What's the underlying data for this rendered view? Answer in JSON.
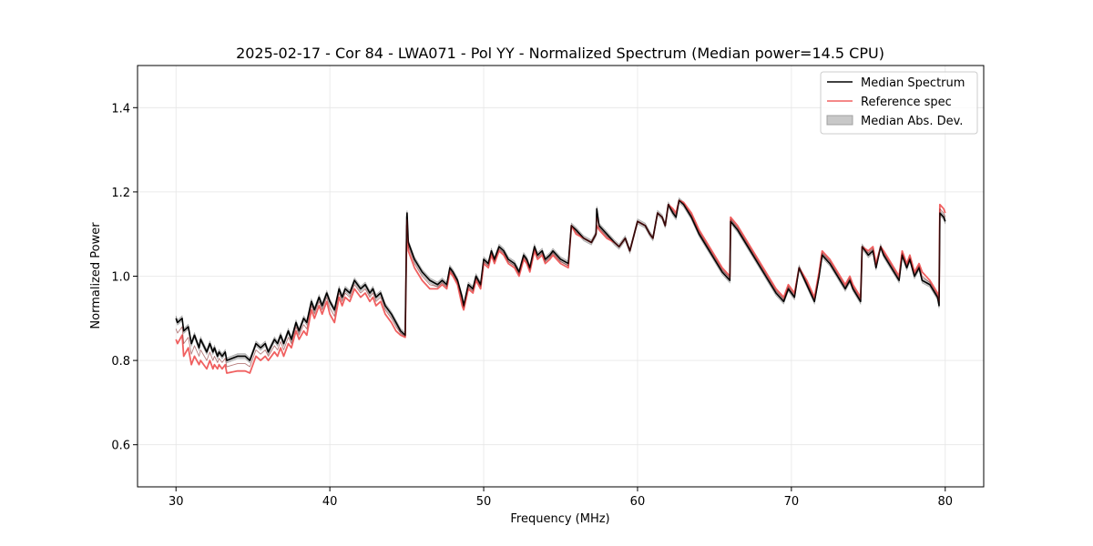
{
  "chart_data": {
    "type": "line",
    "title": "2025-02-17 - Cor 84 - LWA071 - Pol YY - Normalized Spectrum (Median power=14.5 CPU)",
    "xlabel": "Frequency (MHz)",
    "ylabel": "Normalized Power",
    "xlim": [
      27.5,
      82.5
    ],
    "ylim": [
      0.5,
      1.5
    ],
    "xticks": [
      30,
      40,
      50,
      60,
      70,
      80
    ],
    "yticks": [
      0.6,
      0.8,
      1.0,
      1.2,
      1.4
    ],
    "xtick_labels": [
      "30",
      "40",
      "50",
      "60",
      "70",
      "80"
    ],
    "ytick_labels": [
      "0.6",
      "0.8",
      "1.0",
      "1.2",
      "1.4"
    ],
    "grid": true,
    "legend_position": "top-right",
    "colors": {
      "median": "#000000",
      "reference": "#f06060",
      "mad_fill": "#c8c8c8",
      "mad_edge": "#a0a0a0"
    },
    "series": [
      {
        "name": "Median Spectrum",
        "x": [
          30.0,
          30.1,
          30.4,
          30.5,
          30.8,
          31.0,
          31.2,
          31.5,
          31.6,
          32.0,
          32.2,
          32.4,
          32.5,
          32.7,
          32.8,
          33.0,
          33.2,
          33.3,
          34.0,
          34.5,
          34.8,
          35.0,
          35.2,
          35.5,
          35.8,
          36.0,
          36.4,
          36.6,
          36.8,
          37.0,
          37.3,
          37.5,
          37.8,
          38.0,
          38.3,
          38.5,
          38.8,
          39.0,
          39.3,
          39.5,
          39.8,
          40.0,
          40.3,
          40.6,
          40.8,
          41.0,
          41.3,
          41.6,
          42.0,
          42.3,
          42.6,
          42.8,
          43.0,
          43.3,
          43.6,
          44.0,
          44.3,
          44.6,
          44.9,
          45.0,
          45.02,
          45.1,
          45.5,
          46.0,
          46.5,
          47.0,
          47.3,
          47.6,
          47.8,
          48.0,
          48.3,
          48.6,
          48.7,
          49.0,
          49.3,
          49.5,
          49.8,
          50.0,
          50.3,
          50.5,
          50.7,
          51.0,
          51.3,
          51.6,
          52.0,
          52.3,
          52.6,
          52.8,
          53.0,
          53.3,
          53.5,
          53.8,
          54.0,
          54.3,
          54.5,
          55.0,
          55.5,
          55.7,
          56.0,
          56.5,
          57.0,
          57.3,
          57.35,
          57.5,
          58.0,
          58.5,
          58.8,
          59.2,
          59.5,
          60.0,
          60.5,
          60.8,
          61.0,
          61.3,
          61.6,
          61.8,
          62.0,
          62.3,
          62.5,
          62.7,
          63.0,
          63.5,
          64.0,
          64.5,
          65.0,
          65.5,
          66.0,
          66.05,
          66.5,
          67.0,
          67.5,
          68.0,
          68.5,
          69.0,
          69.5,
          69.8,
          70.0,
          70.2,
          70.5,
          71.0,
          71.5,
          71.8,
          72.0,
          72.5,
          73.0,
          73.5,
          73.8,
          74.0,
          74.5,
          74.6,
          75.0,
          75.3,
          75.5,
          75.8,
          76.0,
          76.5,
          77.0,
          77.2,
          77.5,
          77.7,
          78.0,
          78.3,
          78.5,
          79.0,
          79.5,
          79.6,
          79.65,
          79.9,
          80.0
        ],
        "values": [
          0.9,
          0.89,
          0.9,
          0.87,
          0.88,
          0.84,
          0.86,
          0.83,
          0.85,
          0.82,
          0.84,
          0.82,
          0.83,
          0.81,
          0.82,
          0.81,
          0.82,
          0.8,
          0.81,
          0.81,
          0.8,
          0.82,
          0.84,
          0.83,
          0.84,
          0.82,
          0.85,
          0.84,
          0.86,
          0.84,
          0.87,
          0.85,
          0.89,
          0.87,
          0.9,
          0.89,
          0.94,
          0.92,
          0.95,
          0.93,
          0.96,
          0.94,
          0.92,
          0.97,
          0.95,
          0.97,
          0.96,
          0.99,
          0.97,
          0.98,
          0.96,
          0.97,
          0.95,
          0.96,
          0.93,
          0.91,
          0.89,
          0.87,
          0.86,
          1.14,
          1.15,
          1.08,
          1.04,
          1.01,
          0.99,
          0.98,
          0.99,
          0.98,
          1.02,
          1.01,
          0.99,
          0.95,
          0.93,
          0.98,
          0.97,
          1.0,
          0.98,
          1.04,
          1.03,
          1.06,
          1.04,
          1.07,
          1.06,
          1.04,
          1.03,
          1.01,
          1.05,
          1.04,
          1.02,
          1.07,
          1.05,
          1.06,
          1.04,
          1.05,
          1.06,
          1.04,
          1.03,
          1.12,
          1.11,
          1.09,
          1.08,
          1.1,
          1.16,
          1.12,
          1.1,
          1.08,
          1.07,
          1.09,
          1.06,
          1.13,
          1.12,
          1.1,
          1.09,
          1.15,
          1.14,
          1.12,
          1.17,
          1.15,
          1.14,
          1.18,
          1.17,
          1.14,
          1.1,
          1.07,
          1.04,
          1.01,
          0.99,
          1.13,
          1.11,
          1.08,
          1.05,
          1.02,
          0.99,
          0.96,
          0.94,
          0.97,
          0.96,
          0.95,
          1.02,
          0.98,
          0.94,
          1.0,
          1.05,
          1.03,
          1.0,
          0.97,
          0.99,
          0.97,
          0.94,
          1.07,
          1.05,
          1.06,
          1.02,
          1.07,
          1.05,
          1.02,
          0.99,
          1.05,
          1.02,
          1.04,
          1.0,
          1.02,
          0.99,
          0.98,
          0.95,
          0.93,
          1.15,
          1.14,
          1.13
        ]
      },
      {
        "name": "Reference spec",
        "x": [
          30.0,
          30.1,
          30.4,
          30.5,
          30.8,
          31.0,
          31.2,
          31.5,
          31.6,
          32.0,
          32.2,
          32.4,
          32.5,
          32.7,
          32.8,
          33.0,
          33.2,
          33.3,
          34.0,
          34.5,
          34.8,
          35.0,
          35.2,
          35.5,
          35.8,
          36.0,
          36.4,
          36.6,
          36.8,
          37.0,
          37.3,
          37.5,
          37.8,
          38.0,
          38.3,
          38.5,
          38.8,
          39.0,
          39.3,
          39.5,
          39.8,
          40.0,
          40.3,
          40.6,
          40.8,
          41.0,
          41.3,
          41.6,
          42.0,
          42.3,
          42.6,
          42.8,
          43.0,
          43.3,
          43.6,
          44.0,
          44.3,
          44.6,
          44.9,
          45.0,
          45.02,
          45.1,
          45.5,
          46.0,
          46.5,
          47.0,
          47.3,
          47.6,
          47.8,
          48.0,
          48.3,
          48.6,
          48.7,
          49.0,
          49.3,
          49.5,
          49.8,
          50.0,
          50.3,
          50.5,
          50.7,
          51.0,
          51.3,
          51.6,
          52.0,
          52.3,
          52.6,
          52.8,
          53.0,
          53.3,
          53.5,
          53.8,
          54.0,
          54.3,
          54.5,
          55.0,
          55.5,
          55.7,
          56.0,
          56.5,
          57.0,
          57.3,
          57.35,
          57.5,
          58.0,
          58.5,
          58.8,
          59.2,
          59.5,
          60.0,
          60.5,
          60.8,
          61.0,
          61.3,
          61.6,
          61.8,
          62.0,
          62.3,
          62.5,
          62.7,
          63.0,
          63.5,
          64.0,
          64.5,
          65.0,
          65.5,
          66.0,
          66.05,
          66.5,
          67.0,
          67.5,
          68.0,
          68.5,
          69.0,
          69.5,
          69.8,
          70.0,
          70.2,
          70.5,
          71.0,
          71.5,
          71.8,
          72.0,
          72.5,
          73.0,
          73.5,
          73.8,
          74.0,
          74.5,
          74.6,
          75.0,
          75.3,
          75.5,
          75.8,
          76.0,
          76.5,
          77.0,
          77.2,
          77.5,
          77.7,
          78.0,
          78.3,
          78.5,
          79.0,
          79.5,
          79.6,
          79.65,
          79.9,
          80.0
        ],
        "values": [
          0.85,
          0.84,
          0.86,
          0.81,
          0.83,
          0.79,
          0.81,
          0.79,
          0.8,
          0.78,
          0.8,
          0.78,
          0.79,
          0.78,
          0.79,
          0.78,
          0.79,
          0.77,
          0.775,
          0.775,
          0.77,
          0.79,
          0.81,
          0.8,
          0.81,
          0.8,
          0.82,
          0.81,
          0.83,
          0.81,
          0.84,
          0.83,
          0.87,
          0.85,
          0.87,
          0.86,
          0.92,
          0.9,
          0.93,
          0.91,
          0.94,
          0.91,
          0.89,
          0.95,
          0.93,
          0.95,
          0.94,
          0.97,
          0.95,
          0.96,
          0.94,
          0.95,
          0.93,
          0.94,
          0.91,
          0.89,
          0.87,
          0.86,
          0.855,
          1.12,
          1.12,
          1.06,
          1.02,
          0.99,
          0.97,
          0.97,
          0.98,
          0.97,
          1.01,
          1.0,
          0.98,
          0.93,
          0.92,
          0.97,
          0.96,
          0.99,
          0.97,
          1.03,
          1.02,
          1.05,
          1.03,
          1.06,
          1.05,
          1.03,
          1.02,
          1.0,
          1.04,
          1.03,
          1.01,
          1.06,
          1.04,
          1.05,
          1.03,
          1.04,
          1.05,
          1.03,
          1.02,
          1.12,
          1.1,
          1.09,
          1.08,
          1.1,
          1.12,
          1.11,
          1.09,
          1.08,
          1.07,
          1.09,
          1.06,
          1.13,
          1.12,
          1.1,
          1.09,
          1.15,
          1.14,
          1.12,
          1.17,
          1.16,
          1.15,
          1.18,
          1.175,
          1.15,
          1.11,
          1.08,
          1.05,
          1.02,
          1.0,
          1.14,
          1.12,
          1.09,
          1.06,
          1.03,
          1.0,
          0.97,
          0.95,
          0.98,
          0.97,
          0.96,
          1.02,
          0.99,
          0.95,
          1.01,
          1.06,
          1.04,
          1.01,
          0.98,
          1.0,
          0.98,
          0.95,
          1.07,
          1.06,
          1.07,
          1.03,
          1.07,
          1.06,
          1.03,
          1.0,
          1.06,
          1.03,
          1.05,
          1.01,
          1.03,
          1.01,
          0.99,
          0.96,
          0.95,
          1.17,
          1.16,
          1.15
        ]
      }
    ],
    "mad_halfwidth": 0.006,
    "legend": [
      {
        "label": "Median Spectrum",
        "kind": "line",
        "color": "#000000"
      },
      {
        "label": "Reference spec",
        "kind": "line",
        "color": "#f06060"
      },
      {
        "label": "Median Abs. Dev.",
        "kind": "patch",
        "color": "#c8c8c8"
      }
    ]
  }
}
